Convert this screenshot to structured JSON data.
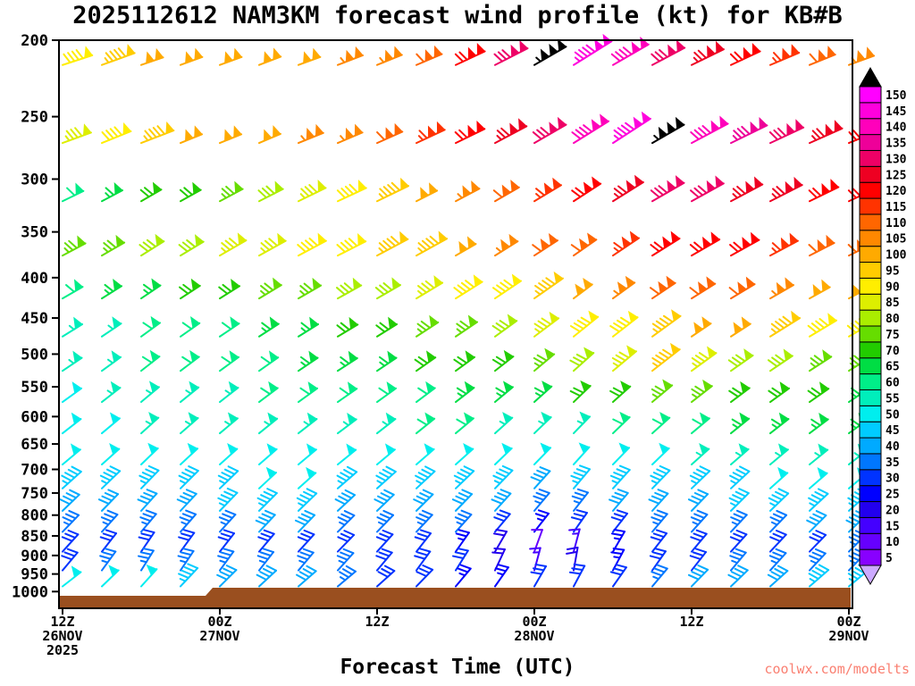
{
  "title": "2025112612 NAM3KM forecast wind profile (kt) for KB#B",
  "xlabel": "Forecast Time (UTC)",
  "watermark": "coolwx.com/modelts",
  "terrain_color": "#9a4f1f",
  "y_axis": {
    "ticks": [
      200,
      250,
      300,
      350,
      400,
      450,
      500,
      550,
      600,
      650,
      700,
      750,
      800,
      850,
      900,
      950,
      1000
    ]
  },
  "x_axis": {
    "ticks": [
      {
        "hour": 0,
        "lines": [
          "12Z",
          "26NOV",
          "2025"
        ]
      },
      {
        "hour": 12,
        "lines": [
          "00Z",
          "27NOV"
        ]
      },
      {
        "hour": 24,
        "lines": [
          "12Z"
        ]
      },
      {
        "hour": 36,
        "lines": [
          "00Z",
          "28NOV"
        ]
      },
      {
        "hour": 48,
        "lines": [
          "12Z"
        ]
      },
      {
        "hour": 60,
        "lines": [
          "00Z",
          "29NOV"
        ]
      }
    ]
  },
  "colorbar": {
    "values": [
      5,
      10,
      15,
      20,
      25,
      30,
      35,
      40,
      45,
      50,
      55,
      60,
      65,
      70,
      75,
      80,
      85,
      90,
      95,
      100,
      105,
      110,
      115,
      120,
      125,
      130,
      135,
      140,
      145,
      150
    ],
    "colors": [
      "#8800ff",
      "#6600ff",
      "#4400ff",
      "#2200ee",
      "#0000ff",
      "#0033ff",
      "#0077ff",
      "#00aaff",
      "#00ccff",
      "#00eeee",
      "#00eebb",
      "#00ee88",
      "#00dd44",
      "#22cc00",
      "#66dd00",
      "#aaee00",
      "#ddee00",
      "#ffee00",
      "#ffcc00",
      "#ffaa00",
      "#ff8800",
      "#ff6600",
      "#ff3300",
      "#ff0000",
      "#ee0022",
      "#ee0066",
      "#ee0099",
      "#ff00bb",
      "#ff00dd",
      "#ff00ff"
    ],
    "over_color": "#000000",
    "under_color": "#ccaaff"
  },
  "chart_data": {
    "type": "heatmap",
    "subtype": "wind-barb-time-height-profile",
    "title": "2025112612 NAM3KM forecast wind profile (kt) for KB#B",
    "xlabel": "Forecast Time (UTC)",
    "units": "kt",
    "pressure_range_hpa": [
      200,
      1050
    ],
    "time_range_hours": [
      0,
      60
    ],
    "x_hours": [
      0,
      3,
      6,
      9,
      12,
      15,
      18,
      21,
      24,
      27,
      30,
      33,
      36,
      39,
      42,
      45,
      48,
      51,
      54,
      57,
      60
    ],
    "levels_hpa": [
      215,
      270,
      320,
      375,
      425,
      475,
      525,
      575,
      630,
      690,
      740,
      790,
      840,
      890,
      940,
      985
    ],
    "speed_kt": [
      [
        88,
        95,
        100,
        100,
        100,
        102,
        102,
        104,
        106,
        112,
        120,
        132,
        155,
        144,
        138,
        132,
        126,
        120,
        114,
        108,
        103
      ],
      [
        85,
        92,
        96,
        100,
        100,
        102,
        104,
        106,
        110,
        114,
        118,
        124,
        130,
        138,
        146,
        155,
        142,
        136,
        130,
        124,
        118
      ],
      [
        62,
        65,
        68,
        72,
        76,
        80,
        85,
        90,
        95,
        100,
        105,
        110,
        115,
        120,
        125,
        128,
        128,
        126,
        124,
        120,
        118
      ],
      [
        75,
        77,
        79,
        81,
        83,
        85,
        88,
        91,
        94,
        97,
        100,
        104,
        108,
        112,
        116,
        120,
        122,
        120,
        116,
        112,
        110
      ],
      [
        62,
        64,
        66,
        68,
        70,
        73,
        76,
        79,
        82,
        85,
        88,
        92,
        96,
        100,
        105,
        110,
        112,
        108,
        105,
        102,
        100
      ],
      [
        55,
        56,
        58,
        60,
        62,
        64,
        66,
        68,
        70,
        73,
        76,
        80,
        84,
        88,
        92,
        96,
        100,
        98,
        95,
        92,
        90
      ],
      [
        55,
        57,
        58,
        60,
        61,
        62,
        64,
        65,
        67,
        68,
        70,
        72,
        75,
        78,
        85,
        95,
        85,
        80,
        78,
        76,
        75
      ],
      [
        52,
        54,
        55,
        56,
        57,
        58,
        59,
        60,
        61,
        62,
        63,
        65,
        67,
        70,
        72,
        73,
        74,
        72,
        70,
        68,
        66
      ],
      [
        50,
        52,
        53,
        54,
        55,
        56,
        56,
        57,
        57,
        58,
        58,
        57,
        56,
        57,
        59,
        60,
        62,
        63,
        64,
        65,
        65
      ],
      [
        48,
        49,
        50,
        50,
        51,
        51,
        52,
        52,
        51,
        50,
        50,
        49,
        48,
        49,
        51,
        52,
        53,
        54,
        55,
        55,
        56
      ],
      [
        45,
        46,
        46,
        47,
        47,
        48,
        48,
        47,
        47,
        46,
        45,
        44,
        42,
        43,
        45,
        46,
        47,
        47,
        48,
        48,
        48
      ],
      [
        40,
        41,
        42,
        42,
        43,
        43,
        43,
        42,
        42,
        41,
        40,
        38,
        35,
        36,
        39,
        41,
        42,
        43,
        43,
        44,
        44
      ],
      [
        35,
        36,
        36,
        37,
        37,
        38,
        38,
        37,
        36,
        35,
        34,
        30,
        26,
        28,
        32,
        35,
        36,
        37,
        37,
        38,
        38
      ],
      [
        28,
        29,
        30,
        30,
        31,
        31,
        30,
        30,
        29,
        28,
        26,
        18,
        12,
        15,
        24,
        28,
        30,
        31,
        32,
        32,
        33
      ],
      [
        32,
        33,
        34,
        34,
        35,
        35,
        34,
        33,
        32,
        30,
        28,
        22,
        15,
        18,
        26,
        30,
        32,
        33,
        34,
        34,
        35
      ],
      [
        50,
        50,
        48,
        45,
        42,
        40,
        38,
        35,
        30,
        28,
        25,
        25,
        28,
        30,
        32,
        35,
        38,
        40,
        42,
        45,
        45
      ]
    ],
    "barb_angle_deg": [
      [
        18,
        20,
        19,
        20,
        20,
        21,
        20,
        21,
        22,
        23,
        25,
        27,
        30,
        32,
        30,
        28,
        26,
        25,
        23,
        22,
        20
      ],
      [
        20,
        22,
        21,
        22,
        22,
        23,
        22,
        23,
        24,
        25,
        26,
        28,
        30,
        32,
        33,
        30,
        28,
        26,
        25,
        24,
        22
      ],
      [
        26,
        28,
        30,
        29,
        28,
        27,
        26,
        25,
        26,
        27,
        28,
        30,
        31,
        33,
        32,
        30,
        29,
        28,
        27,
        26,
        25
      ],
      [
        28,
        30,
        32,
        31,
        30,
        29,
        28,
        27,
        28,
        29,
        30,
        32,
        33,
        35,
        34,
        32,
        30,
        29,
        28,
        27,
        26
      ],
      [
        30,
        32,
        34,
        33,
        32,
        31,
        30,
        29,
        30,
        31,
        32,
        34,
        35,
        37,
        36,
        34,
        32,
        31,
        30,
        29,
        28
      ],
      [
        32,
        34,
        36,
        35,
        34,
        33,
        32,
        31,
        32,
        33,
        34,
        36,
        37,
        39,
        38,
        36,
        34,
        33,
        32,
        31,
        30
      ],
      [
        34,
        36,
        38,
        37,
        36,
        35,
        34,
        33,
        34,
        35,
        36,
        38,
        40,
        42,
        40,
        38,
        36,
        35,
        34,
        33,
        32
      ],
      [
        36,
        38,
        40,
        39,
        38,
        37,
        36,
        35,
        36,
        37,
        38,
        40,
        42,
        44,
        42,
        40,
        38,
        37,
        36,
        35,
        34
      ],
      [
        38,
        40,
        42,
        41,
        40,
        39,
        38,
        37,
        38,
        39,
        40,
        42,
        44,
        46,
        44,
        42,
        40,
        39,
        38,
        37,
        36
      ],
      [
        40,
        42,
        44,
        43,
        42,
        41,
        40,
        39,
        40,
        41,
        42,
        44,
        46,
        48,
        46,
        44,
        42,
        41,
        40,
        39,
        38
      ],
      [
        42,
        44,
        46,
        45,
        44,
        43,
        42,
        41,
        42,
        43,
        44,
        46,
        48,
        50,
        48,
        46,
        44,
        43,
        42,
        41,
        40
      ],
      [
        44,
        46,
        48,
        47,
        46,
        45,
        44,
        43,
        44,
        45,
        46,
        48,
        50,
        52,
        50,
        48,
        46,
        45,
        44,
        43,
        42
      ],
      [
        46,
        48,
        50,
        49,
        48,
        47,
        46,
        45,
        46,
        47,
        48,
        50,
        52,
        55,
        52,
        50,
        48,
        47,
        46,
        45,
        44
      ],
      [
        48,
        52,
        56,
        54,
        52,
        50,
        48,
        46,
        48,
        52,
        55,
        60,
        70,
        75,
        60,
        52,
        50,
        48,
        47,
        46,
        45
      ],
      [
        50,
        54,
        58,
        56,
        54,
        52,
        50,
        48,
        50,
        54,
        58,
        65,
        75,
        80,
        62,
        55,
        52,
        50,
        48,
        47,
        46
      ],
      [
        38,
        44,
        48,
        47,
        45,
        43,
        41,
        40,
        42,
        46,
        50,
        55,
        60,
        62,
        55,
        50,
        46,
        44,
        42,
        41,
        40
      ]
    ]
  }
}
